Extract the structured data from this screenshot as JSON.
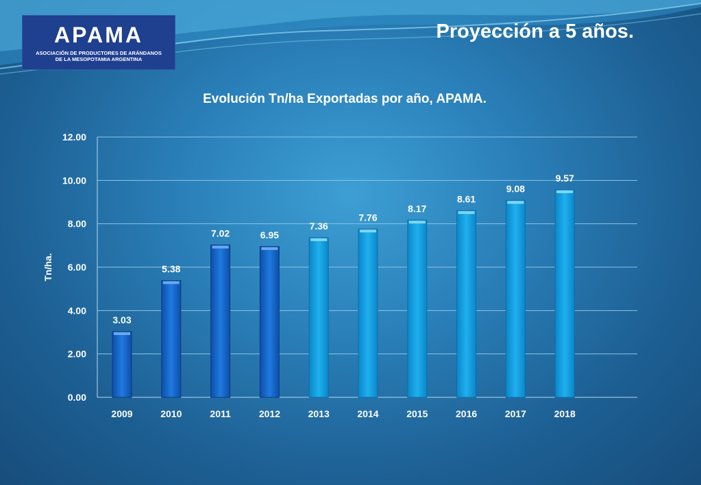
{
  "logo": {
    "name": "APAMA",
    "tagline_line1": "ASOCIACIÓN DE PRODUCTORES DE ARÁNDANOS",
    "tagline_line2": "DE LA MESOPOTAMIA ARGENTINA"
  },
  "slide_title": "Proyección a 5 años.",
  "colors": {
    "bar_historic": "#1a6fd0",
    "bar_projected": "#16a3e4",
    "text": "#ffffff"
  },
  "chart_data": {
    "type": "bar",
    "title": "Evolución Tn/ha Exportadas por año, APAMA.",
    "xlabel": "",
    "ylabel": "Tn/ha.",
    "categories": [
      "2009",
      "2010",
      "2011",
      "2012",
      "2013",
      "2014",
      "2015",
      "2016",
      "2017",
      "2018"
    ],
    "values": [
      3.03,
      5.38,
      7.02,
      6.95,
      7.36,
      7.76,
      8.17,
      8.61,
      9.08,
      9.57
    ],
    "value_labels": [
      "3.03",
      "5.38",
      "7.02",
      "6.95",
      "7.36",
      "7.76",
      "8.17",
      "8.61",
      "9.08",
      "9.57"
    ],
    "projected_from_index": 4,
    "ylim": [
      0,
      12
    ],
    "yticks": [
      "0.00",
      "2.00",
      "4.00",
      "6.00",
      "8.00",
      "10.00",
      "12.00"
    ],
    "grid": true,
    "legend": "none"
  }
}
